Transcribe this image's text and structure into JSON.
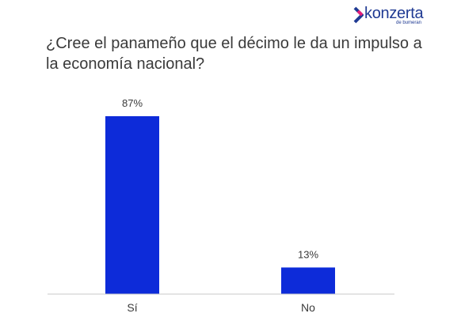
{
  "brand": {
    "name": "konzerta",
    "sub": "de bumeran",
    "color": "#1f3a93",
    "accent": "#e6207a"
  },
  "chart_data": {
    "type": "bar",
    "title": "¿Cree el panameño que el décimo le da un impulso a la economía nacional?",
    "categories": [
      "Sí",
      "No"
    ],
    "values": [
      87,
      13
    ],
    "data_labels": [
      "87%",
      "13%"
    ],
    "ylim": [
      0,
      100
    ],
    "grid": false,
    "bar_color": "#0d2bd9"
  }
}
